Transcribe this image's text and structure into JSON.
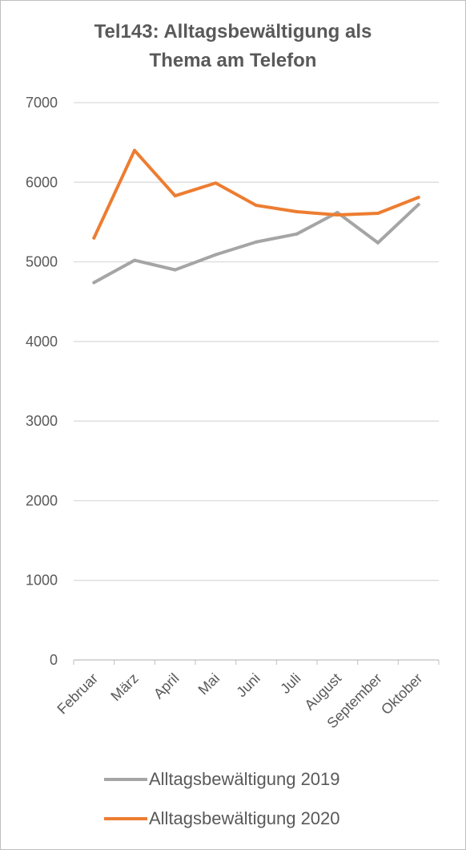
{
  "chart_data": {
    "type": "line",
    "title_line1": "Tel143: Alltagsbewältigung als",
    "title_line2": "Thema am Telefon",
    "categories": [
      "Februar",
      "März",
      "April",
      "Mai",
      "Juni",
      "Juli",
      "August",
      "September",
      "Oktober"
    ],
    "yticks": [
      "0",
      "1000",
      "2000",
      "3000",
      "4000",
      "5000",
      "6000",
      "7000"
    ],
    "ylim": [
      0,
      7000
    ],
    "grid": true,
    "legend_position": "bottom",
    "series": [
      {
        "name": "Alltagsbewältigung 2019",
        "color": "#a5a5a5",
        "values": [
          4740,
          5020,
          4900,
          5090,
          5250,
          5350,
          5620,
          5240,
          5720
        ]
      },
      {
        "name": "Alltagsbewältigung 2020",
        "color": "#ed7d31",
        "values": [
          5300,
          6400,
          5830,
          5990,
          5710,
          5630,
          5590,
          5610,
          5810
        ]
      }
    ]
  }
}
